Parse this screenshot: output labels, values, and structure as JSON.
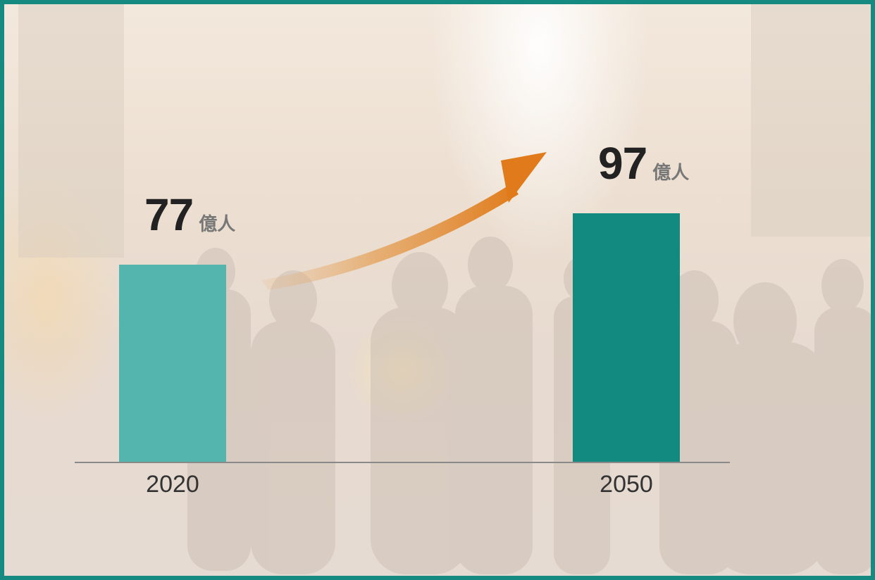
{
  "colors": {
    "frame": "#148a80",
    "bar_2020": "#53b5ae",
    "bar_2050": "#128a80",
    "arrow": "#e07a1a",
    "axis": "#8a8a8a"
  },
  "chart_data": {
    "type": "bar",
    "categories": [
      "2020",
      "2050"
    ],
    "values": [
      77,
      97
    ],
    "unit": "億人",
    "value_labels": [
      "77",
      "97"
    ],
    "title": "",
    "xlabel": "",
    "ylabel": "",
    "grid": false,
    "legend": "none",
    "annotation": "upward arrow from 2020 to 2050"
  }
}
